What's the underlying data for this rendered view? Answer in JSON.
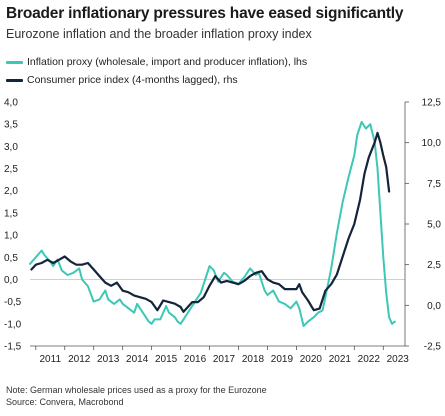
{
  "header": {
    "title": "Broader inflationary pressures have eased significantly",
    "subtitle": "Eurozone inflation and the broader inflation proxy index"
  },
  "colors": {
    "inflation_proxy": "#3cc8b4",
    "cpi": "#14243a"
  },
  "footer": {
    "note": "Note: German wholesale prices used as a proxy for the Eurozone",
    "source": "Source: Convera, Macrobond"
  },
  "chart_data": {
    "type": "line",
    "legend_position": "top-left",
    "x_ticks": [
      "2011",
      "2012",
      "2013",
      "2014",
      "2015",
      "2016",
      "2017",
      "2018",
      "2019",
      "2020",
      "2021",
      "2022",
      "2023"
    ],
    "xlim": [
      2010.8,
      2023.75
    ],
    "y_left": {
      "ticks": [
        "4,0",
        "3,5",
        "3,0",
        "2,5",
        "2,0",
        "1,5",
        "1,0",
        "0,5",
        "0,0",
        "-0,5",
        "-1,0",
        "-1,5"
      ],
      "ylim": [
        -1.5,
        4.0
      ]
    },
    "y_right": {
      "ticks": [
        "12,5",
        "10,0",
        "7,5",
        "5,0",
        "2,5",
        "0,0",
        "-2,5"
      ],
      "ylim": [
        -2.5,
        12.5
      ]
    },
    "series": [
      {
        "name": "Inflation proxy (wholesale, import and producer inflation), lhs",
        "axis": "left",
        "x": [
          2010.8,
          2011.0,
          2011.2,
          2011.3,
          2011.5,
          2011.6,
          2011.75,
          2011.9,
          2012.1,
          2012.3,
          2012.5,
          2012.6,
          2012.8,
          2013.0,
          2013.2,
          2013.4,
          2013.5,
          2013.7,
          2013.9,
          2014.0,
          2014.2,
          2014.4,
          2014.5,
          2014.7,
          2014.9,
          2015.0,
          2015.1,
          2015.3,
          2015.5,
          2015.6,
          2015.8,
          2015.9,
          2016.0,
          2016.1,
          2016.3,
          2016.5,
          2016.7,
          2016.85,
          2017.0,
          2017.15,
          2017.3,
          2017.5,
          2017.6,
          2017.8,
          2018.0,
          2018.2,
          2018.4,
          2018.6,
          2018.7,
          2018.9,
          2019.0,
          2019.2,
          2019.4,
          2019.6,
          2019.8,
          2020.0,
          2020.1,
          2020.25,
          2020.4,
          2020.6,
          2020.75,
          2020.9,
          2021.0,
          2021.2,
          2021.4,
          2021.6,
          2021.8,
          2022.0,
          2022.1,
          2022.25,
          2022.4,
          2022.55,
          2022.7,
          2022.8,
          2022.9,
          2023.0,
          2023.1,
          2023.2,
          2023.3,
          2023.4
        ],
        "values": [
          0.35,
          0.5,
          0.65,
          0.55,
          0.4,
          0.3,
          0.45,
          0.2,
          0.1,
          0.15,
          0.25,
          0.0,
          -0.15,
          -0.5,
          -0.45,
          -0.25,
          -0.45,
          -0.55,
          -0.45,
          -0.55,
          -0.65,
          -0.75,
          -0.55,
          -0.75,
          -0.95,
          -1.0,
          -0.9,
          -0.9,
          -0.6,
          -0.75,
          -0.85,
          -0.95,
          -1.0,
          -0.9,
          -0.7,
          -0.5,
          -0.3,
          0.0,
          0.3,
          0.2,
          -0.05,
          0.15,
          0.1,
          -0.05,
          -0.1,
          0.05,
          0.25,
          0.1,
          0.15,
          -0.25,
          -0.35,
          -0.25,
          -0.5,
          -0.55,
          -0.65,
          -0.5,
          -0.65,
          -1.05,
          -0.95,
          -0.85,
          -0.75,
          -0.7,
          -0.4,
          0.25,
          1.05,
          1.75,
          2.3,
          2.8,
          3.25,
          3.55,
          3.4,
          3.5,
          3.1,
          2.5,
          1.5,
          0.5,
          -0.3,
          -0.85,
          -1.0,
          -0.95
        ]
      },
      {
        "name": "Consumer price index (4-months lagged), rhs",
        "axis": "right",
        "x": [
          2010.85,
          2011.0,
          2011.2,
          2011.4,
          2011.6,
          2011.8,
          2012.0,
          2012.2,
          2012.4,
          2012.6,
          2012.8,
          2013.0,
          2013.2,
          2013.4,
          2013.6,
          2013.8,
          2014.0,
          2014.2,
          2014.4,
          2014.6,
          2014.8,
          2015.0,
          2015.2,
          2015.4,
          2015.6,
          2015.8,
          2016.0,
          2016.1,
          2016.2,
          2016.4,
          2016.6,
          2016.8,
          2017.0,
          2017.2,
          2017.4,
          2017.6,
          2017.8,
          2018.0,
          2018.2,
          2018.4,
          2018.6,
          2018.8,
          2019.0,
          2019.2,
          2019.4,
          2019.6,
          2019.8,
          2020.0,
          2020.1,
          2020.2,
          2020.4,
          2020.6,
          2020.8,
          2021.0,
          2021.2,
          2021.4,
          2021.6,
          2021.8,
          2022.0,
          2022.2,
          2022.35,
          2022.5,
          2022.7,
          2022.8,
          2022.9,
          2023.0,
          2023.1,
          2023.2
        ],
        "values": [
          2.2,
          2.5,
          2.6,
          2.8,
          2.6,
          2.8,
          3.0,
          2.7,
          2.5,
          2.5,
          2.6,
          2.2,
          1.8,
          1.4,
          1.2,
          1.4,
          0.9,
          0.8,
          0.6,
          0.5,
          0.4,
          0.2,
          -0.3,
          0.3,
          0.2,
          0.1,
          -0.1,
          -0.4,
          -0.2,
          0.2,
          0.2,
          0.5,
          1.2,
          1.8,
          1.4,
          1.5,
          1.4,
          1.3,
          1.5,
          1.8,
          2.0,
          2.1,
          1.6,
          1.4,
          1.3,
          1.0,
          1.0,
          1.0,
          1.3,
          0.8,
          0.3,
          -0.3,
          -0.2,
          0.9,
          1.3,
          1.9,
          3.0,
          4.1,
          5.0,
          6.5,
          8.1,
          9.1,
          10.0,
          10.6,
          10.0,
          9.2,
          8.5,
          7.0
        ]
      }
    ]
  }
}
